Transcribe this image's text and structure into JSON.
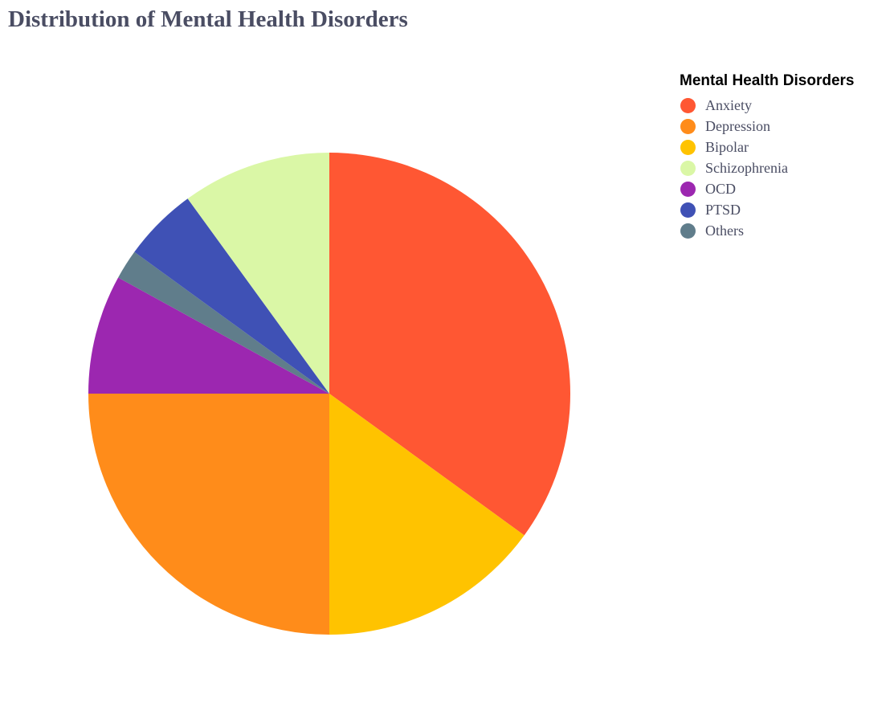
{
  "chart_data": {
    "type": "pie",
    "title": "Distribution of Mental Health Disorders",
    "legend_title": "Mental Health Disorders",
    "legend_position": "top-right",
    "slices": [
      {
        "label": "Anxiety",
        "value": 35,
        "color": "#FF5733"
      },
      {
        "label": "Depression",
        "value": 25,
        "color": "#FF8C1A"
      },
      {
        "label": "Bipolar",
        "value": 15,
        "color": "#FFC300"
      },
      {
        "label": "Schizophrenia",
        "value": 10,
        "color": "#DAF7A6"
      },
      {
        "label": "OCD",
        "value": 8,
        "color": "#9C27B0"
      },
      {
        "label": "PTSD",
        "value": 5,
        "color": "#3F51B5"
      },
      {
        "label": "Others",
        "value": 2,
        "color": "#607D8B"
      }
    ],
    "draw_order": [
      "Anxiety",
      "Bipolar",
      "Depression",
      "OCD",
      "Others",
      "PTSD",
      "Schizophrenia"
    ]
  }
}
